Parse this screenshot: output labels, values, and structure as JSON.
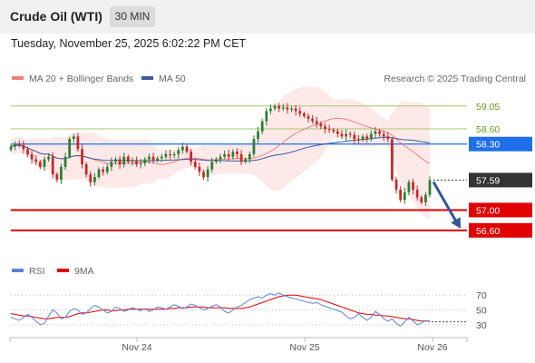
{
  "header": {
    "title": "Crude Oil (WTI)",
    "timeframe": "30 MIN",
    "timestamp": "Tuesday, November 25, 2025 6:02:22 PM CET"
  },
  "legend": {
    "ma20": "MA 20 + Bollinger Bands",
    "ma50": "MA 50",
    "copyright": "Research © 2025 Trading Central",
    "rsi": "RSI",
    "rsi_ma": "9MA"
  },
  "colors": {
    "candle_up": "#2e7d32",
    "candle_down": "#c62828",
    "ma20": "#f08080",
    "bollinger_fill": "#fde2e2",
    "ma50": "#3b5b98",
    "resistance": "#a5c86a",
    "pivot": "#1e6fe8",
    "support": "#e00000",
    "arrow": "#2f5597",
    "rsi": "#5b84d6",
    "rsi_ma": "#e00000"
  },
  "chart_data": [
    {
      "type": "candlestick",
      "ylim": [
        56.4,
        59.35
      ],
      "x_ticks": [
        "Nov 24",
        "Nov 25",
        "Nov 26"
      ],
      "levels": [
        {
          "value": 59.05,
          "label": "59.05",
          "kind": "resistance"
        },
        {
          "value": 58.6,
          "label": "58.60",
          "kind": "resistance"
        },
        {
          "value": 58.3,
          "label": "58.30",
          "kind": "pivot"
        },
        {
          "value": 57.59,
          "label": "57.59",
          "kind": "last"
        },
        {
          "value": 57.0,
          "label": "57.00",
          "kind": "support"
        },
        {
          "value": 56.6,
          "label": "56.60",
          "kind": "support"
        }
      ],
      "forecast_arrow": {
        "from": 57.59,
        "to": 56.6
      },
      "closes": [
        58.25,
        58.3,
        58.28,
        58.2,
        58.1,
        58.0,
        57.95,
        57.85,
        58.0,
        58.05,
        57.7,
        57.6,
        57.85,
        58.05,
        58.4,
        58.45,
        58.2,
        57.9,
        57.7,
        57.55,
        57.65,
        57.8,
        57.75,
        57.85,
        57.95,
        58.0,
        57.9,
        58.05,
        57.95,
        57.98,
        57.9,
        57.92,
        58.0,
        58.05,
        57.98,
        58.02,
        58.05,
        58.1,
        58.08,
        58.1,
        58.18,
        58.25,
        58.15,
        57.95,
        57.85,
        57.75,
        57.65,
        57.8,
        57.95,
        58.0,
        58.05,
        58.1,
        58.05,
        58.15,
        58.1,
        57.95,
        58.0,
        58.1,
        58.4,
        58.55,
        58.75,
        58.95,
        59.0,
        59.05,
        59.0,
        59.02,
        58.98,
        59.0,
        58.95,
        58.9,
        58.85,
        58.8,
        58.75,
        58.7,
        58.65,
        58.6,
        58.58,
        58.55,
        58.5,
        58.45,
        58.5,
        58.48,
        58.4,
        58.38,
        58.45,
        58.4,
        58.5,
        58.55,
        58.5,
        58.45,
        58.4,
        57.6,
        57.4,
        57.2,
        57.35,
        57.55,
        57.4,
        57.25,
        57.15,
        57.3,
        57.59
      ],
      "rsi": {
        "ylim": [
          20,
          85
        ],
        "ticks": [
          70,
          50,
          30
        ],
        "values": [
          40,
          38,
          36,
          40,
          44,
          40,
          35,
          30,
          32,
          42,
          50,
          46,
          38,
          40,
          48,
          52,
          50,
          44,
          46,
          52,
          56,
          54,
          50,
          46,
          48,
          54,
          52,
          48,
          50,
          53,
          51,
          49,
          52,
          48,
          50,
          54,
          53,
          51,
          54,
          57,
          55,
          52,
          54,
          58,
          56,
          53,
          50,
          52,
          55,
          57,
          54,
          48,
          46,
          50,
          54,
          56,
          60,
          64,
          66,
          68,
          66,
          70,
          72,
          70,
          73,
          70,
          68,
          66,
          65,
          63,
          62,
          60,
          59,
          60,
          57,
          55,
          53,
          51,
          49,
          47,
          42,
          38,
          40,
          45,
          40,
          36,
          40,
          48,
          44,
          38,
          35,
          38,
          32,
          28,
          34,
          40,
          35,
          30,
          32,
          36,
          34
        ],
        "ma": [
          45,
          44,
          43,
          42,
          42,
          41,
          40,
          39,
          38,
          38,
          39,
          40,
          40,
          40,
          41,
          43,
          45,
          46,
          46,
          47,
          48,
          49,
          50,
          50,
          49,
          49,
          50,
          50,
          51,
          51,
          51,
          51,
          51,
          51,
          51,
          51,
          51,
          51,
          52,
          52,
          53,
          53,
          53,
          54,
          54,
          54,
          54,
          53,
          53,
          53,
          53,
          53,
          52,
          52,
          52,
          52,
          53,
          54,
          56,
          58,
          60,
          62,
          64,
          66,
          68,
          69,
          70,
          70,
          70,
          69,
          68,
          67,
          66,
          65,
          64,
          62,
          60,
          58,
          56,
          54,
          52,
          50,
          48,
          46,
          45,
          44,
          44,
          43,
          43,
          42,
          42,
          41,
          40,
          39,
          38,
          38,
          37,
          36,
          35,
          35,
          35
        ]
      }
    }
  ]
}
